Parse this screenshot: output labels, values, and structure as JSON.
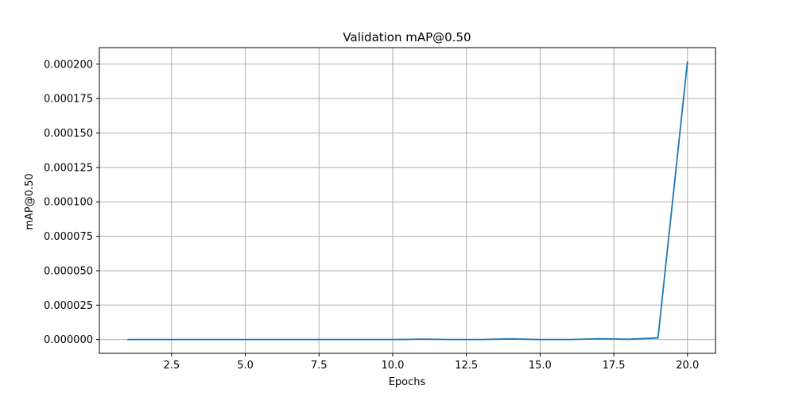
{
  "chart_data": {
    "type": "line",
    "title": "Validation mAP@0.50",
    "xlabel": "Epochs",
    "ylabel": "mAP@0.50",
    "xlim": [
      0.05,
      20.95
    ],
    "ylim": [
      -1e-05,
      0.000212
    ],
    "xticks": [
      2.5,
      5.0,
      7.5,
      10.0,
      12.5,
      15.0,
      17.5,
      20.0
    ],
    "xtick_labels": [
      "2.5",
      "5.0",
      "7.5",
      "10.0",
      "12.5",
      "15.0",
      "17.5",
      "20.0"
    ],
    "yticks": [
      0,
      2.5e-05,
      5e-05,
      7.5e-05,
      0.0001,
      0.000125,
      0.00015,
      0.000175,
      0.0002
    ],
    "ytick_labels": [
      "0.000000",
      "0.000025",
      "0.000050",
      "0.000075",
      "0.000100",
      "0.000125",
      "0.000150",
      "0.000175",
      "0.000200"
    ],
    "grid": true,
    "series": [
      {
        "color": "#1f77b4",
        "x": [
          1,
          2,
          3,
          4,
          5,
          6,
          7,
          8,
          9,
          10,
          11,
          12,
          13,
          14,
          15,
          16,
          17,
          18,
          19,
          20
        ],
        "values": [
          0,
          0,
          0,
          0,
          0,
          0,
          0,
          0,
          0,
          0,
          3e-07,
          0,
          0,
          5e-07,
          0,
          0,
          6e-07,
          2e-07,
          1.2e-06,
          0.000202
        ]
      }
    ]
  }
}
